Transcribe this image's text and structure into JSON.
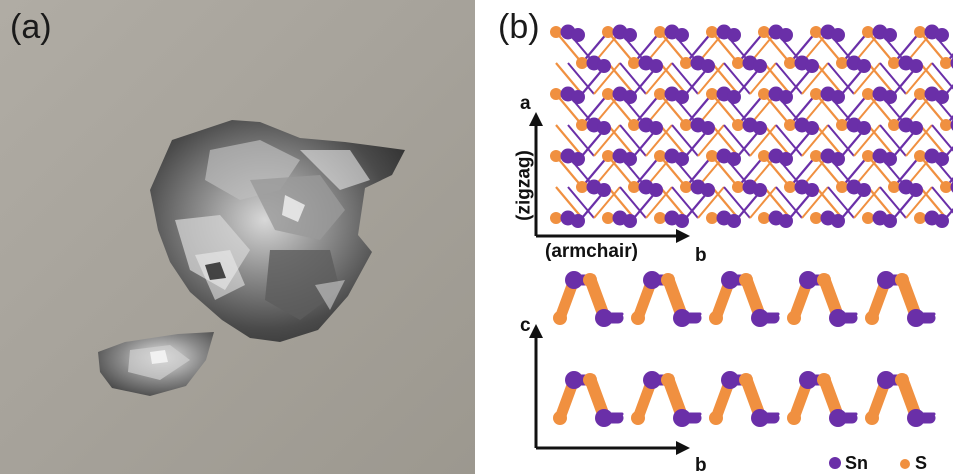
{
  "figure": {
    "panel_a": {
      "label": "(a)",
      "subject": "photograph of metallic grey flakes on a grey background"
    },
    "panel_b": {
      "label": "(b)",
      "top_view": {
        "axis_vertical_letter": "a",
        "axis_vertical_name": "(zigzag)",
        "axis_horizontal_name": "(armchair)",
        "axis_horizontal_letter": "b"
      },
      "side_view": {
        "axis_vertical_letter": "c",
        "axis_horizontal_letter": "b"
      },
      "legend": [
        {
          "label": "Sn",
          "color": "#6a2fa8"
        },
        {
          "label": "S",
          "color": "#f09040"
        }
      ]
    }
  },
  "colors": {
    "tin": "#6a2fa8",
    "sulfur": "#f09040",
    "photo_background": "#a7a39b"
  }
}
